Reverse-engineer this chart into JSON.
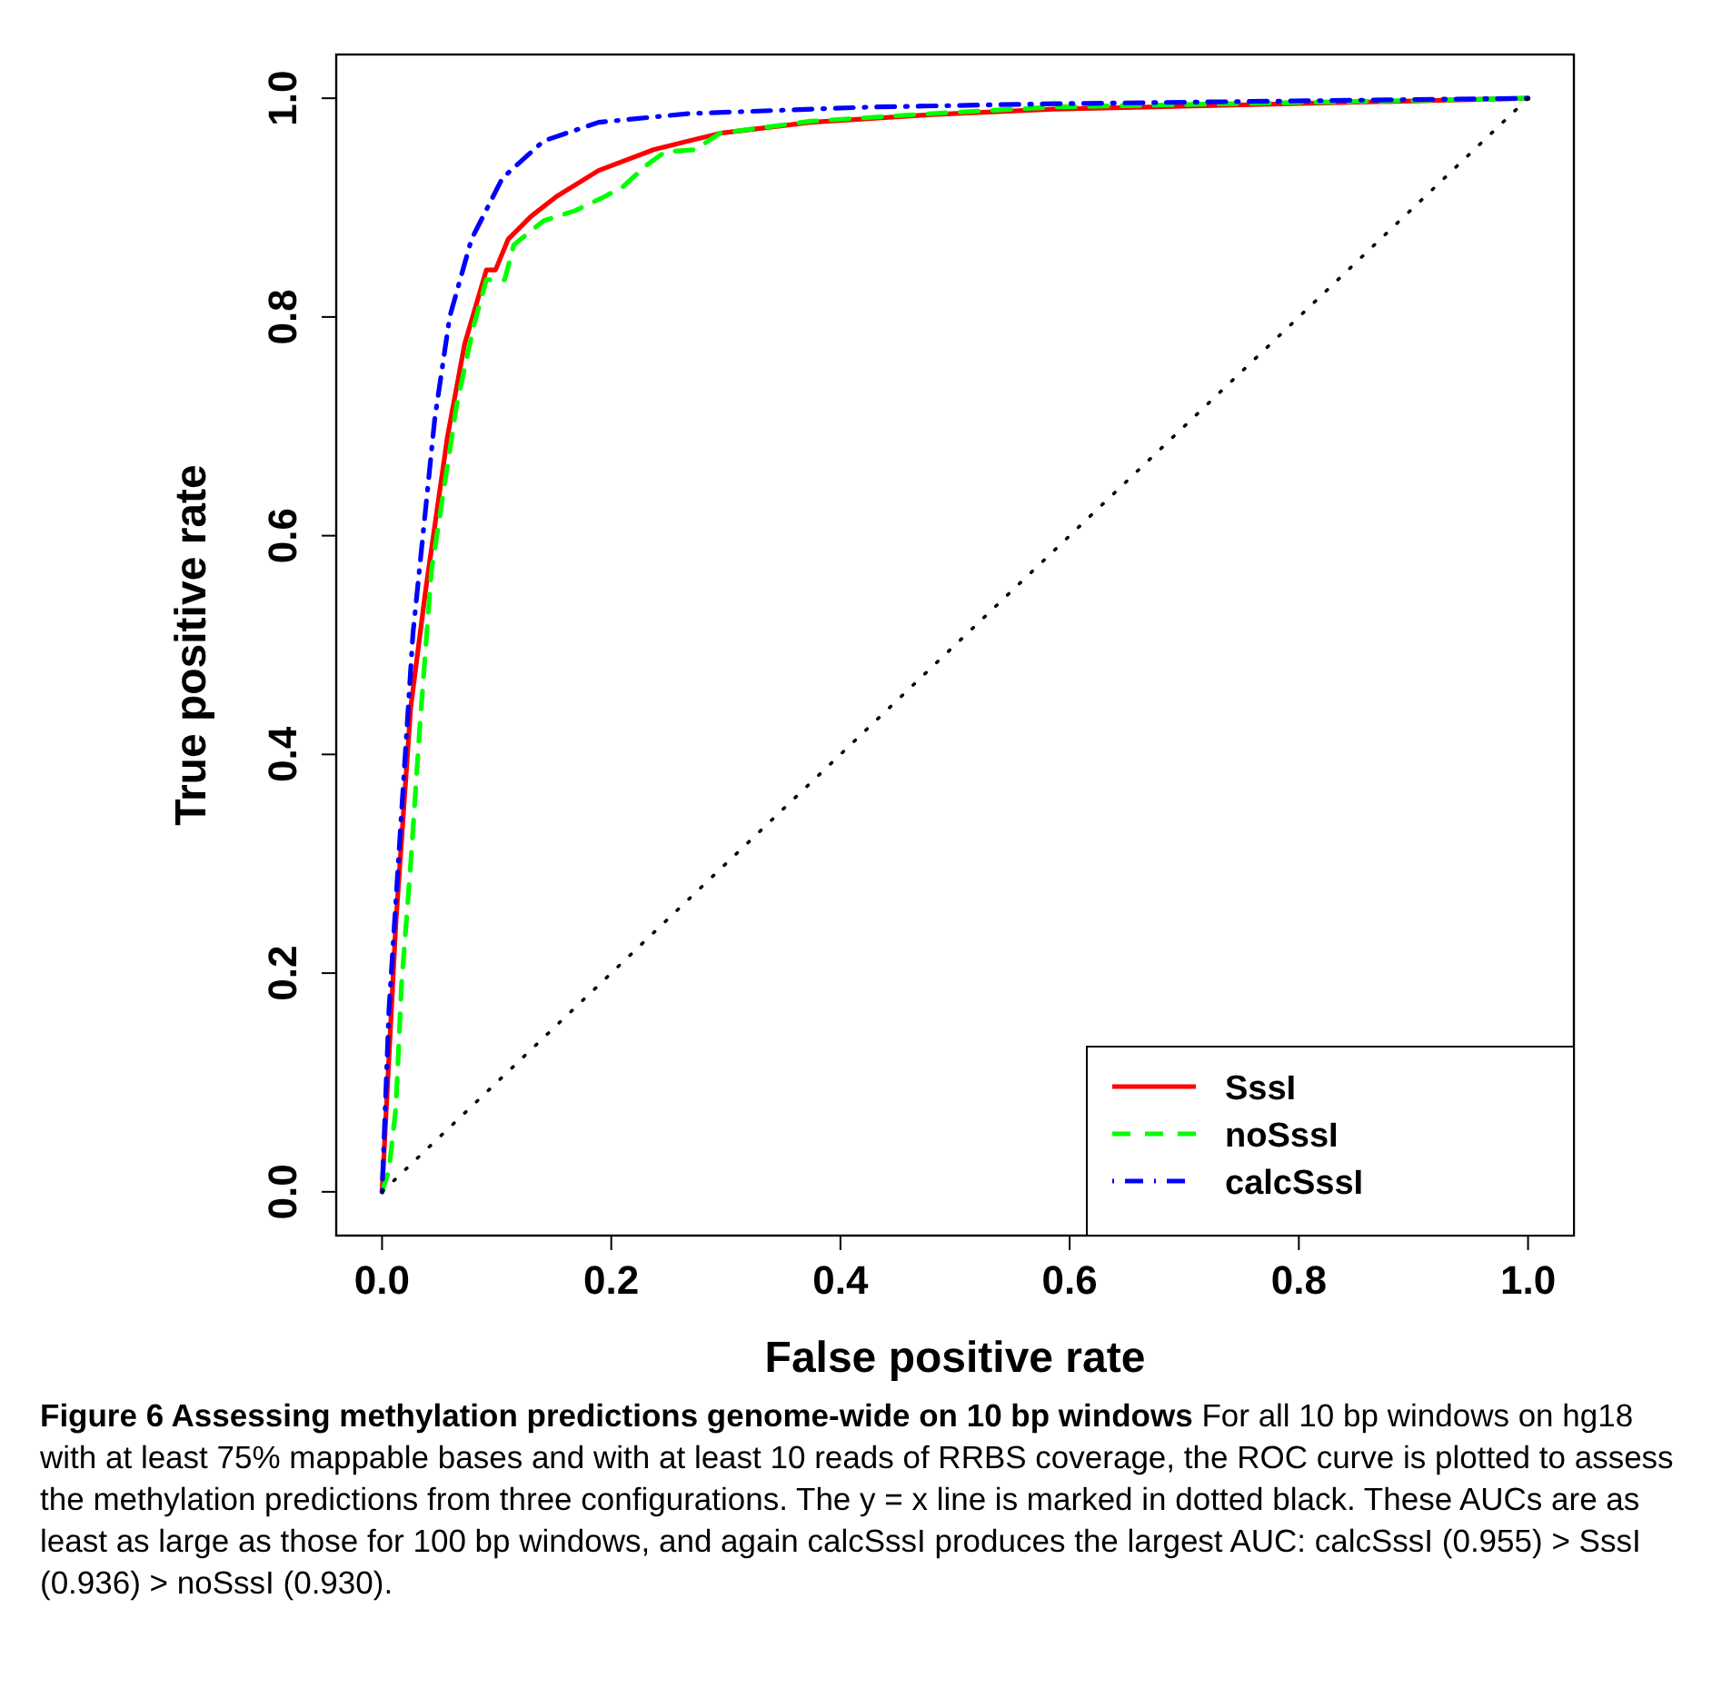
{
  "chart_data": {
    "type": "line",
    "title": "Figure 6 Assessing methylation predictions genome-wide on 10 bp windows",
    "xlabel": "False positive rate",
    "ylabel": "True positive rate",
    "annotations": [
      "For all 10 bp windows on hg18 with at least 75% mappable bases and with at least 10 reads of RRBS coverage, the ROC curve is plotted to assess the methylation predictions from three configurations. The y = x line is marked in dotted black. These AUCs are as least as large as those for 100 bp windows, and again calcSssI produces the largest AUC: calcSssI (0.955) > SssI (0.936) > noSssI (0.930)."
    ],
    "xlim": [
      -0.04,
      1.04
    ],
    "ylim": [
      -0.04,
      1.04
    ],
    "xticks": [
      {
        "value": 0,
        "label": "0.0"
      },
      {
        "value": 0.2,
        "label": "0.2"
      },
      {
        "value": 0.4,
        "label": "0.4"
      },
      {
        "value": 0.6,
        "label": "0.6"
      },
      {
        "value": 0.8,
        "label": "0.8"
      },
      {
        "value": 1,
        "label": "1.0"
      }
    ],
    "yticks": [
      {
        "value": 0,
        "label": "0.0"
      },
      {
        "value": 0.2,
        "label": "0.2"
      },
      {
        "value": 0.4,
        "label": "0.4"
      },
      {
        "value": 0.6,
        "label": "0.6"
      },
      {
        "value": 0.8,
        "label": "0.8"
      },
      {
        "value": 1,
        "label": "1.0"
      }
    ],
    "grid": false,
    "legend": "bottom right",
    "marker": "none",
    "series": [
      {
        "name": "SssI",
        "color": "#ff0000",
        "line_style": "solid",
        "x": [
          0,
          0.012,
          0.025,
          0.038,
          0.057,
          0.072,
          0.091,
          0.099,
          0.11,
          0.13,
          0.152,
          0.189,
          0.237,
          0.295,
          0.374,
          0.48,
          0.586,
          1
        ],
        "values": [
          0,
          0.245,
          0.443,
          0.55,
          0.69,
          0.775,
          0.843,
          0.843,
          0.871,
          0.892,
          0.91,
          0.934,
          0.953,
          0.968,
          0.978,
          0.985,
          0.99,
          1
        ]
      },
      {
        "name": "noSssI",
        "color": "#00ff00",
        "line_style": "dashed",
        "x": [
          0,
          0.006,
          0.012,
          0.017,
          0.025,
          0.033,
          0.043,
          0.065,
          0.08,
          0.091,
          0.107,
          0.115,
          0.141,
          0.168,
          0.194,
          0.21,
          0.231,
          0.247,
          0.273,
          0.295,
          0.374,
          0.48,
          0.586,
          1
        ],
        "values": [
          0,
          0.02,
          0.076,
          0.19,
          0.3,
          0.426,
          0.567,
          0.719,
          0.792,
          0.834,
          0.834,
          0.866,
          0.888,
          0.897,
          0.91,
          0.919,
          0.939,
          0.951,
          0.953,
          0.968,
          0.979,
          0.986,
          0.992,
          1
        ]
      },
      {
        "name": "calcSssI",
        "color": "#0000ff",
        "line_style": "dashdot",
        "x": [
          0,
          0.006,
          0.017,
          0.027,
          0.046,
          0.059,
          0.078,
          0.105,
          0.141,
          0.189,
          0.268,
          0.427,
          0.586,
          1
        ],
        "values": [
          0,
          0.166,
          0.347,
          0.511,
          0.707,
          0.8,
          0.871,
          0.927,
          0.961,
          0.978,
          0.986,
          0.992,
          0.995,
          1
        ]
      },
      {
        "color": "#000000",
        "line_style": "dotted",
        "x": [
          0,
          1
        ],
        "values": [
          0,
          1
        ]
      }
    ]
  }
}
